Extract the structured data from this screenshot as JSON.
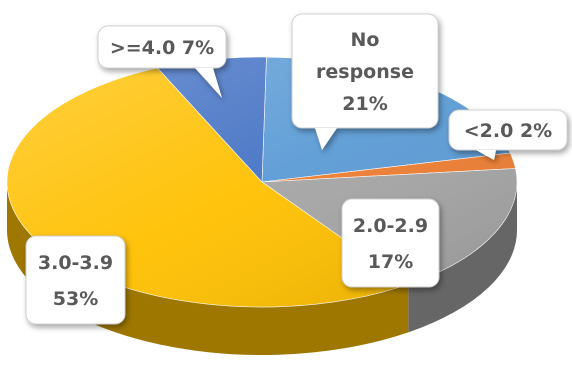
{
  "chart_data": {
    "type": "pie",
    "title": "",
    "slices": [
      {
        "category": "No response",
        "value": 21,
        "label": "21%",
        "color": "#5b9bd5"
      },
      {
        "category": "<2.0",
        "value": 2,
        "label": "2%",
        "color": "#ed7d31"
      },
      {
        "category": "2.0-2.9",
        "value": 17,
        "label": "17%",
        "color": "#a5a5a5"
      },
      {
        "category": "3.0-3.9",
        "value": 53,
        "label": "53%",
        "color": "#ffc000"
      },
      {
        "category": ">=4.0",
        "value": 7,
        "label": "7%",
        "color": "#4472c4"
      }
    ],
    "legend": "none"
  }
}
